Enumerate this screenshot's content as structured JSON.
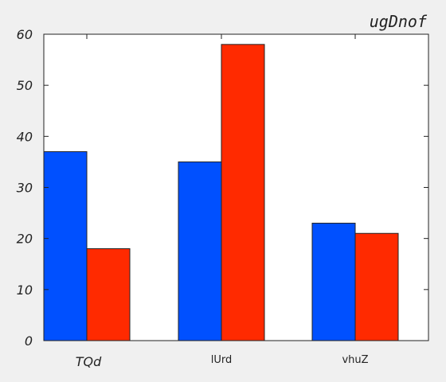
{
  "chart_data": {
    "type": "bar",
    "title": "ugDnof",
    "categories": [
      "TQd",
      "lUrd",
      "vhuZ"
    ],
    "series": [
      {
        "values": [
          37,
          35,
          23
        ],
        "color": "#0050ff"
      },
      {
        "values": [
          18,
          58,
          21
        ],
        "color": "#ff2a00"
      }
    ],
    "xlabel": "",
    "ylabel": "",
    "ylim": [
      0,
      60
    ],
    "yticks": [
      0,
      10,
      20,
      30,
      40,
      50,
      60
    ],
    "grid": false,
    "background": "#ffffff",
    "figure_background": "#f0f0f0"
  }
}
